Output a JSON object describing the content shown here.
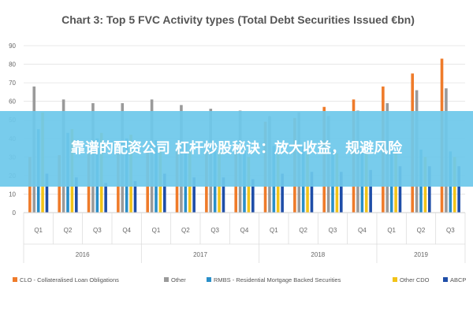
{
  "banner": {
    "text": "靠谱的配资公司 杠杆炒股秘诀：放大收益，规避风险"
  },
  "chart_data": {
    "type": "bar",
    "title": "Chart 3: Top 5 FVC Activity types (Total Debt Securities Issued €bn)",
    "ylim": [
      0,
      90
    ],
    "yticks": [
      0,
      10,
      20,
      30,
      40,
      50,
      60,
      70,
      80,
      90
    ],
    "grid": true,
    "legend_position": "bottom",
    "categories": [
      "Q1",
      "Q2",
      "Q3",
      "Q4",
      "Q1",
      "Q2",
      "Q3",
      "Q4",
      "Q1",
      "Q2",
      "Q3",
      "Q4",
      "Q1",
      "Q2",
      "Q3"
    ],
    "year_groups": [
      {
        "label": "2016",
        "span": 4
      },
      {
        "label": "2017",
        "span": 4
      },
      {
        "label": "2018",
        "span": 4
      },
      {
        "label": "2019",
        "span": 3
      }
    ],
    "series": [
      {
        "name": "CLO - Collateralised Loan Obligations",
        "color": "#ef7b2a",
        "values": [
          30,
          31,
          32,
          32,
          33,
          34,
          34,
          37,
          49,
          51,
          57,
          61,
          68,
          75,
          83
        ]
      },
      {
        "name": "Other",
        "color": "#9a9a9a",
        "values": [
          68,
          61,
          59,
          59,
          61,
          58,
          56,
          55,
          52,
          54,
          52,
          55,
          59,
          66,
          67
        ]
      },
      {
        "name": "RMBS - Residential Mortgage Backed Securities",
        "color": "#2a8fc9",
        "values": [
          45,
          43,
          40,
          40,
          39,
          38,
          36,
          36,
          36,
          36,
          34,
          35,
          34,
          34,
          33
        ]
      },
      {
        "name": "Other CDO",
        "color": "#f2c318",
        "values": [
          54,
          45,
          43,
          42,
          35,
          33,
          33,
          30,
          32,
          32,
          32,
          32,
          32,
          30,
          30
        ]
      },
      {
        "name": "ABCP",
        "color": "#1f4ea8",
        "values": [
          21,
          19,
          16,
          17,
          21,
          19,
          19,
          18,
          21,
          22,
          22,
          23,
          25,
          25,
          25
        ]
      }
    ]
  }
}
